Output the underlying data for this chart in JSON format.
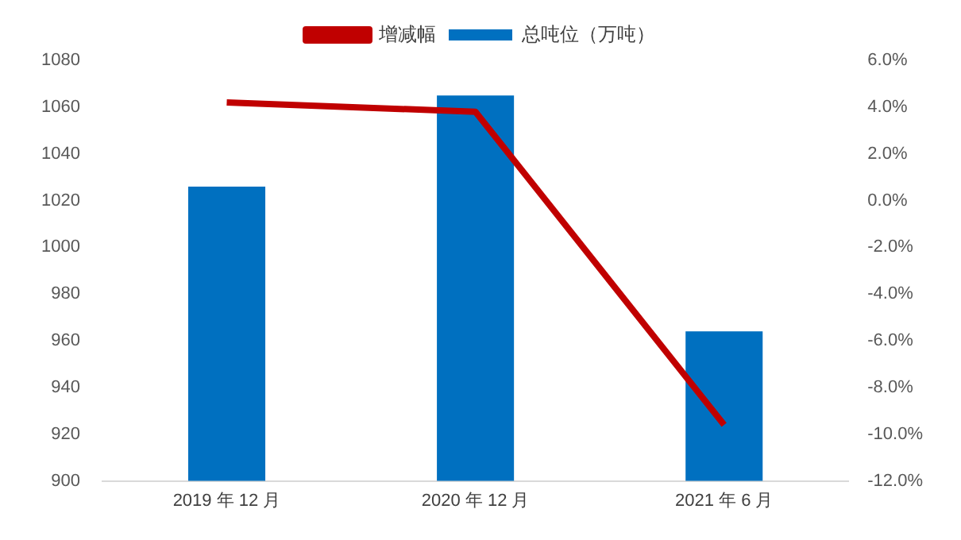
{
  "chart_data": {
    "type": "bar",
    "categories": [
      "2019 年 12 月",
      "2020 年 12 月",
      "2021 年 6 月"
    ],
    "series": [
      {
        "name": "总吨位（万吨）",
        "color": "#0070c0",
        "values": [
          1026,
          1065,
          964
        ]
      },
      {
        "name": "增减幅",
        "type": "line",
        "axis": "y2",
        "color": "#c00000",
        "values": [
          4.2,
          3.8,
          -9.6
        ]
      }
    ],
    "ylim": [
      900,
      1080
    ],
    "yticks": [
      900,
      920,
      940,
      960,
      980,
      1000,
      1020,
      1040,
      1060,
      1080
    ],
    "y2lim": [
      -12,
      6
    ],
    "y2ticks": [
      {
        "value": -12,
        "label": "-12.0%"
      },
      {
        "value": -10,
        "label": "-10.0%"
      },
      {
        "value": -8,
        "label": "-8.0%"
      },
      {
        "value": -6,
        "label": "-6.0%"
      },
      {
        "value": -4,
        "label": "-4.0%"
      },
      {
        "value": -2,
        "label": "-2.0%"
      },
      {
        "value": 0,
        "label": "0.0%"
      },
      {
        "value": 2,
        "label": "2.0%"
      },
      {
        "value": 4,
        "label": "4.0%"
      },
      {
        "value": 6,
        "label": "6.0%"
      }
    ],
    "grid": false,
    "legend": "top",
    "marker": "none"
  }
}
